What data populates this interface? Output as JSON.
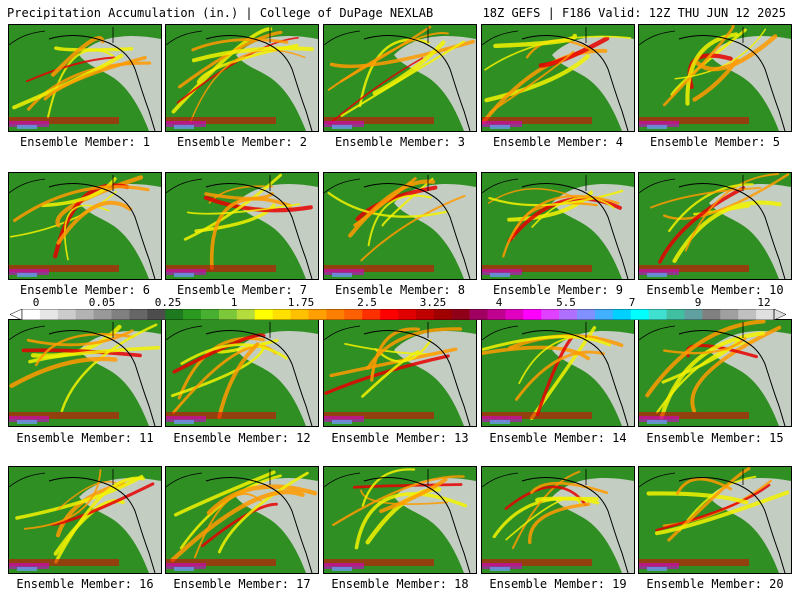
{
  "header": {
    "left": "Precipitation Accumulation (in.) | College of DuPage NEXLAB",
    "right": "18Z GEFS | F186 Valid: 12Z THU JUN 12 2025"
  },
  "panels": [
    {
      "label": "Ensemble Member: 1"
    },
    {
      "label": "Ensemble Member: 2"
    },
    {
      "label": "Ensemble Member: 3"
    },
    {
      "label": "Ensemble Member: 4"
    },
    {
      "label": "Ensemble Member: 5"
    },
    {
      "label": "Ensemble Member: 6"
    },
    {
      "label": "Ensemble Member: 7"
    },
    {
      "label": "Ensemble Member: 8"
    },
    {
      "label": "Ensemble Member: 9"
    },
    {
      "label": "Ensemble Member: 10"
    },
    {
      "label": "Ensemble Member: 11"
    },
    {
      "label": "Ensemble Member: 12"
    },
    {
      "label": "Ensemble Member: 13"
    },
    {
      "label": "Ensemble Member: 14"
    },
    {
      "label": "Ensemble Member: 15"
    },
    {
      "label": "Ensemble Member: 16"
    },
    {
      "label": "Ensemble Member: 17"
    },
    {
      "label": "Ensemble Member: 18"
    },
    {
      "label": "Ensemble Member: 19"
    },
    {
      "label": "Ensemble Member: 20"
    }
  ],
  "colorbar": {
    "ticks": [
      "0",
      "0.05",
      "0.25",
      "1",
      "1.75",
      "2.5",
      "3.25",
      "4",
      "5.5",
      "7",
      "9",
      "12"
    ],
    "colors": [
      "#ffffff",
      "#e6e6e6",
      "#cccccc",
      "#b3b3b3",
      "#999999",
      "#808080",
      "#666666",
      "#4d4d4d",
      "#1e7a1e",
      "#2a9a20",
      "#48b030",
      "#7cc83a",
      "#b4dc3c",
      "#ffff00",
      "#ffe000",
      "#ffc000",
      "#ffa000",
      "#ff8000",
      "#ff6000",
      "#ff3000",
      "#ff0000",
      "#e00000",
      "#c00000",
      "#a00000",
      "#900018",
      "#a00060",
      "#c00090",
      "#e000c0",
      "#ff00ff",
      "#e040ff",
      "#b070ff",
      "#8090ff",
      "#40b0ff",
      "#00d0ff",
      "#00ffff",
      "#40e0d0",
      "#40c0a0",
      "#60a0a0",
      "#808080",
      "#a0a0a0",
      "#c0c0c0",
      "#e0e0e0"
    ]
  },
  "map_colors": {
    "ocean": "#2f8f22",
    "dry_land": "#d4d4d4",
    "yellow": "#f2f200",
    "orange": "#ff9a00",
    "red": "#e60000",
    "magenta": "#d000d0",
    "blue": "#6aa0ff",
    "coast": "#000000"
  }
}
